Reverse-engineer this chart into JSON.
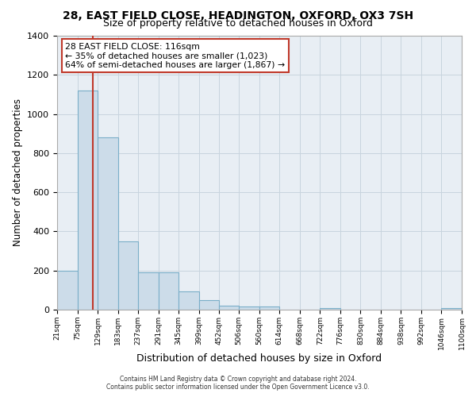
{
  "title_line1": "28, EAST FIELD CLOSE, HEADINGTON, OXFORD, OX3 7SH",
  "title_line2": "Size of property relative to detached houses in Oxford",
  "xlabel": "Distribution of detached houses by size in Oxford",
  "ylabel": "Number of detached properties",
  "bin_edges": [
    21,
    75,
    129,
    183,
    237,
    291,
    345,
    399,
    452,
    506,
    560,
    614,
    668,
    722,
    776,
    830,
    884,
    938,
    992,
    1046,
    1100
  ],
  "bar_heights": [
    200,
    1120,
    880,
    350,
    190,
    190,
    95,
    50,
    20,
    15,
    15,
    0,
    0,
    10,
    0,
    0,
    0,
    0,
    0,
    10
  ],
  "bar_color": "#ccdce9",
  "bar_edge_color": "#7aaec8",
  "grid_color": "#c8d4de",
  "bg_color": "#e8eef4",
  "fig_bg_color": "#ffffff",
  "vline_x": 116,
  "vline_color": "#c0392b",
  "annotation_text": "28 EAST FIELD CLOSE: 116sqm\n← 35% of detached houses are smaller (1,023)\n64% of semi-detached houses are larger (1,867) →",
  "annotation_box_edge": "#c0392b",
  "ylim": [
    0,
    1400
  ],
  "yticks": [
    0,
    200,
    400,
    600,
    800,
    1000,
    1200,
    1400
  ],
  "footer_line1": "Contains HM Land Registry data © Crown copyright and database right 2024.",
  "footer_line2": "Contains public sector information licensed under the Open Government Licence v3.0."
}
